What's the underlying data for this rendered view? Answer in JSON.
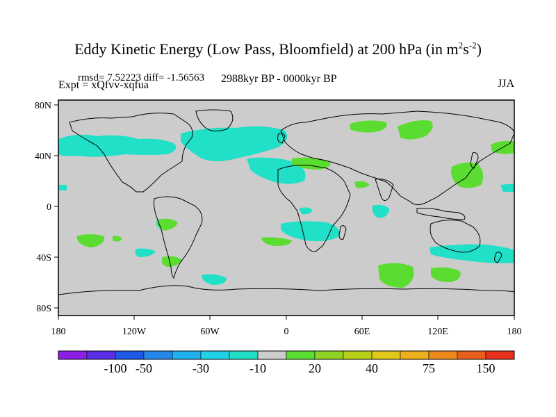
{
  "title": {
    "main": "Eddy Kinetic Energy (Low Pass, Bloomfield) at 200 hPa (in m",
    "sup1": "2",
    "mid": "s",
    "sup2": "-2",
    "end": ")"
  },
  "subtitle": {
    "stats": "rmsd= 7.52223 diff= -1.56563",
    "experiment": "Expt = xQfvv-xqfua",
    "period": "2988kyr BP - 0000kyr BP",
    "season": "JJA"
  },
  "axes": {
    "lon_ticks": [
      "180",
      "120W",
      "60W",
      "0",
      "60E",
      "120E",
      "180"
    ],
    "lat_ticks": [
      "80N",
      "40N",
      "0",
      "40S",
      "80S"
    ]
  },
  "colorbar": {
    "colors": [
      "#8c1fe6",
      "#5a2de6",
      "#1e5ae6",
      "#2487ec",
      "#1fb0f0",
      "#20d2e8",
      "#20e0c8",
      "#cccccc",
      "#5adc30",
      "#8ed226",
      "#b8d018",
      "#e0c81c",
      "#ecae1c",
      "#ec8a1c",
      "#e8601c",
      "#e8301c"
    ],
    "labels": [
      "-100",
      "-50",
      "-30",
      "-10",
      "20",
      "40",
      "75",
      "150"
    ]
  },
  "colors": {
    "land_ocean": "#cccccc",
    "negative_anomaly": "#20e0c8",
    "positive_anomaly": "#5adc30"
  }
}
